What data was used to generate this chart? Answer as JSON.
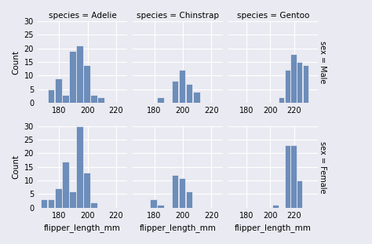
{
  "title_col": [
    "species = Adelie",
    "species = Chinstrap",
    "species = Gentoo"
  ],
  "title_row": [
    "sex = Male",
    "sex = Female"
  ],
  "bar_color": "#6d8dba",
  "background_color": "#eaeaf2",
  "grid_color": "white",
  "xlabel": "flipper_length_mm",
  "ylabel": "Count",
  "ylim": [
    0,
    30
  ],
  "yticks": [
    0,
    5,
    10,
    15,
    20,
    25,
    30
  ],
  "histograms": {
    "Adelie_Male": {
      "bin_edges": [
        172,
        177,
        182,
        187,
        192,
        197,
        202,
        207,
        212
      ],
      "counts": [
        5,
        9,
        3,
        19,
        21,
        14,
        3,
        2,
        0
      ]
    },
    "Chinstrap_Male": {
      "bin_edges": [
        182,
        187,
        192,
        197,
        202,
        207,
        212
      ],
      "counts": [
        2,
        0,
        8,
        12,
        7,
        4,
        1
      ]
    },
    "Gentoo_Male": {
      "bin_edges": [
        207,
        212,
        217,
        222,
        227,
        232
      ],
      "counts": [
        2,
        12,
        18,
        15,
        14,
        0
      ]
    },
    "Adelie_Female": {
      "bin_edges": [
        167,
        172,
        177,
        182,
        187,
        192,
        197,
        202,
        207
      ],
      "counts": [
        3,
        3,
        7,
        17,
        6,
        30,
        13,
        2,
        1
      ]
    },
    "Chinstrap_Female": {
      "bin_edges": [
        177,
        182,
        187,
        192,
        197,
        202,
        207,
        212
      ],
      "counts": [
        3,
        1,
        0,
        12,
        11,
        6,
        0,
        1
      ]
    },
    "Gentoo_Female": {
      "bin_edges": [
        202,
        207,
        212,
        217,
        222,
        227
      ],
      "counts": [
        1,
        0,
        23,
        23,
        10,
        1
      ]
    }
  },
  "xlims": {
    "Adelie": [
      165,
      228
    ],
    "Chinstrap": [
      165,
      228
    ],
    "Gentoo": [
      165,
      240
    ]
  },
  "xticks": [
    180,
    200,
    220
  ]
}
